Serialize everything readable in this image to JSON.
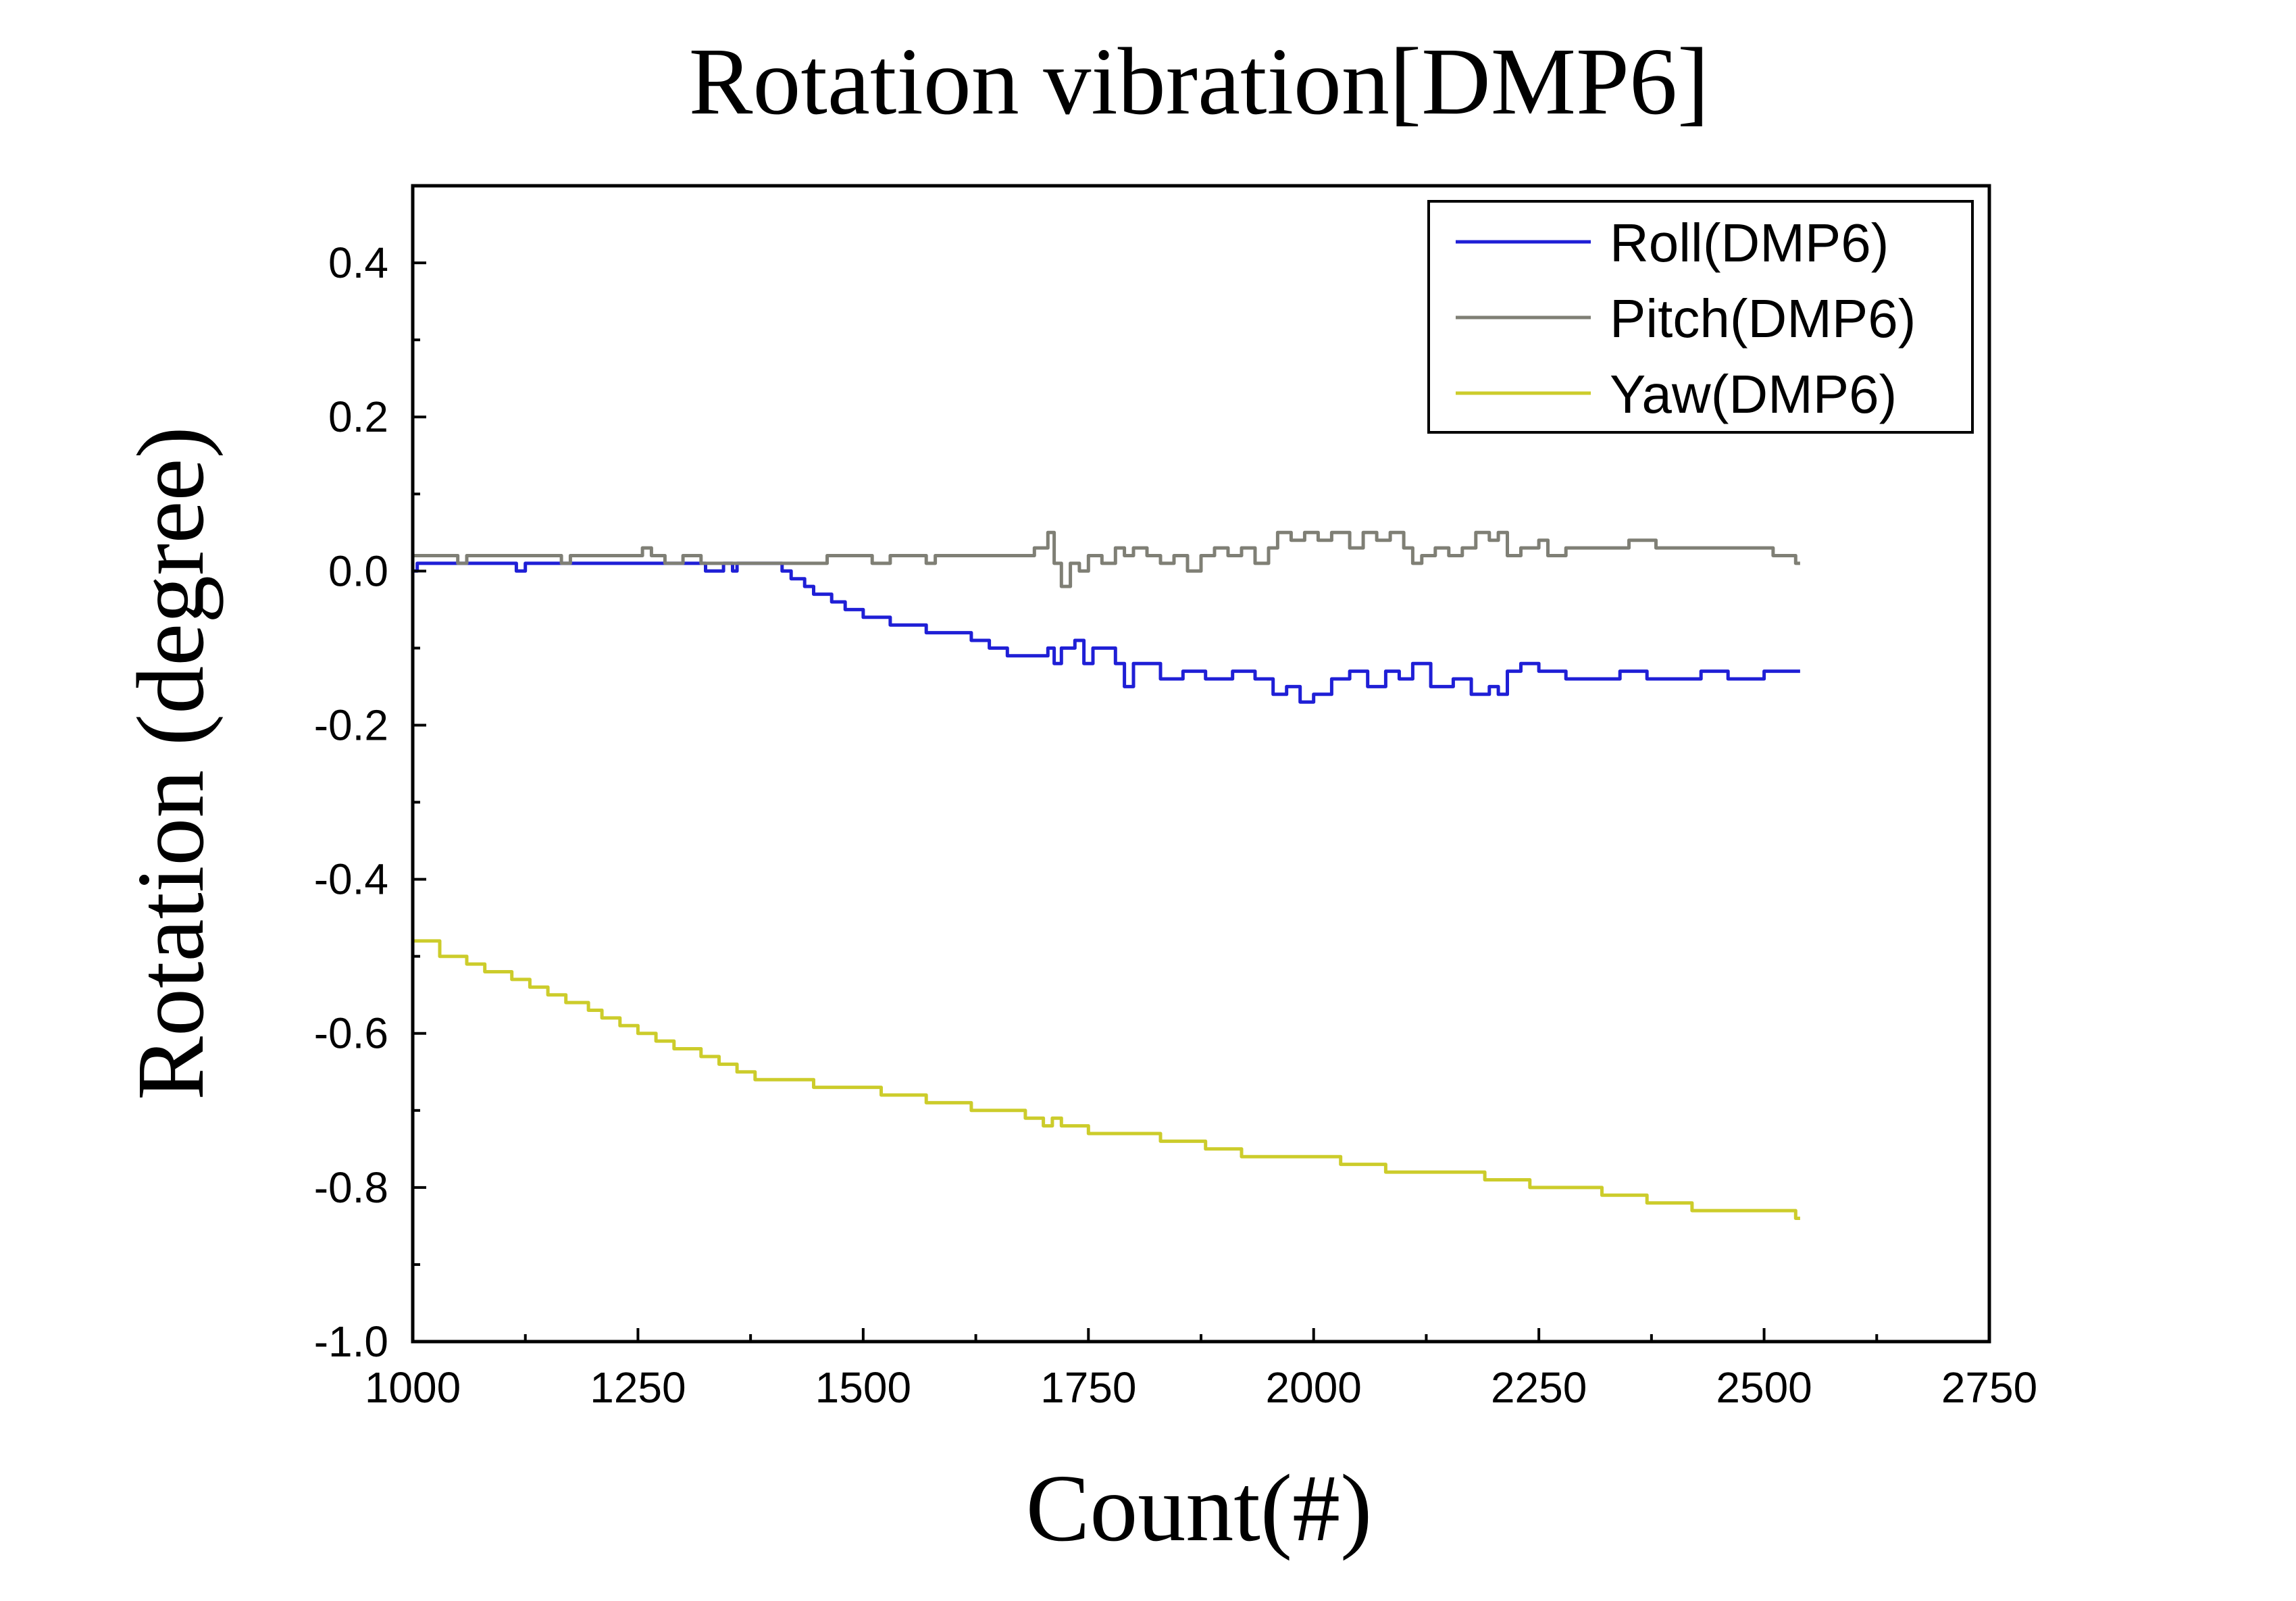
{
  "chart_data": {
    "type": "line",
    "title": "Rotation vibration[DMP6]",
    "xlabel": "Count(#)",
    "ylabel": "Rotation (degree)",
    "xlim": [
      1000,
      2750
    ],
    "ylim": [
      -1.0,
      0.5
    ],
    "x_ticks": [
      1000,
      1250,
      1500,
      1750,
      2000,
      2250,
      2500,
      2750
    ],
    "x_tick_labels": [
      "1000",
      "1250",
      "1500",
      "1750",
      "2000",
      "2250",
      "2500",
      "2750"
    ],
    "y_ticks": [
      0.4,
      0.2,
      0.0,
      -0.2,
      -0.4,
      -0.6,
      -0.8,
      -1.0
    ],
    "y_tick_labels": [
      "0.4",
      "0.2",
      "0.0",
      "-0.2",
      "-0.4",
      "-0.6",
      "-0.8",
      "-1.0"
    ],
    "grid": false,
    "legend_position": "top-right",
    "series": [
      {
        "name": "Roll(DMP6)",
        "color": "#1f1fd6",
        "points": [
          [
            1000,
            0.0
          ],
          [
            1005,
            0.01
          ],
          [
            1110,
            0.01
          ],
          [
            1115,
            0.0
          ],
          [
            1125,
            0.01
          ],
          [
            1320,
            0.01
          ],
          [
            1325,
            0.0
          ],
          [
            1345,
            0.01
          ],
          [
            1355,
            0.0
          ],
          [
            1360,
            0.01
          ],
          [
            1400,
            0.01
          ],
          [
            1410,
            0.0
          ],
          [
            1420,
            -0.01
          ],
          [
            1435,
            -0.02
          ],
          [
            1445,
            -0.03
          ],
          [
            1465,
            -0.04
          ],
          [
            1480,
            -0.05
          ],
          [
            1500,
            -0.06
          ],
          [
            1530,
            -0.07
          ],
          [
            1570,
            -0.08
          ],
          [
            1620,
            -0.09
          ],
          [
            1640,
            -0.1
          ],
          [
            1660,
            -0.11
          ],
          [
            1700,
            -0.11
          ],
          [
            1705,
            -0.1
          ],
          [
            1712,
            -0.12
          ],
          [
            1720,
            -0.1
          ],
          [
            1735,
            -0.09
          ],
          [
            1745,
            -0.12
          ],
          [
            1755,
            -0.1
          ],
          [
            1770,
            -0.1
          ],
          [
            1780,
            -0.12
          ],
          [
            1790,
            -0.15
          ],
          [
            1800,
            -0.12
          ],
          [
            1815,
            -0.12
          ],
          [
            1830,
            -0.14
          ],
          [
            1855,
            -0.13
          ],
          [
            1880,
            -0.14
          ],
          [
            1910,
            -0.13
          ],
          [
            1935,
            -0.14
          ],
          [
            1955,
            -0.16
          ],
          [
            1970,
            -0.15
          ],
          [
            1985,
            -0.17
          ],
          [
            2000,
            -0.16
          ],
          [
            2020,
            -0.14
          ],
          [
            2040,
            -0.13
          ],
          [
            2060,
            -0.15
          ],
          [
            2080,
            -0.13
          ],
          [
            2095,
            -0.14
          ],
          [
            2110,
            -0.12
          ],
          [
            2130,
            -0.15
          ],
          [
            2155,
            -0.14
          ],
          [
            2175,
            -0.16
          ],
          [
            2195,
            -0.15
          ],
          [
            2205,
            -0.16
          ],
          [
            2215,
            -0.13
          ],
          [
            2230,
            -0.12
          ],
          [
            2250,
            -0.13
          ],
          [
            2280,
            -0.14
          ],
          [
            2310,
            -0.14
          ],
          [
            2340,
            -0.13
          ],
          [
            2370,
            -0.14
          ],
          [
            2400,
            -0.14
          ],
          [
            2430,
            -0.13
          ],
          [
            2460,
            -0.14
          ],
          [
            2500,
            -0.13
          ],
          [
            2540,
            -0.13
          ]
        ]
      },
      {
        "name": "Pitch(DMP6)",
        "color": "#7f7f75",
        "points": [
          [
            1000,
            0.02
          ],
          [
            1040,
            0.02
          ],
          [
            1050,
            0.01
          ],
          [
            1060,
            0.02
          ],
          [
            1160,
            0.02
          ],
          [
            1165,
            0.01
          ],
          [
            1175,
            0.02
          ],
          [
            1250,
            0.02
          ],
          [
            1255,
            0.03
          ],
          [
            1265,
            0.02
          ],
          [
            1280,
            0.01
          ],
          [
            1300,
            0.02
          ],
          [
            1320,
            0.01
          ],
          [
            1400,
            0.01
          ],
          [
            1450,
            0.01
          ],
          [
            1460,
            0.02
          ],
          [
            1500,
            0.02
          ],
          [
            1510,
            0.01
          ],
          [
            1530,
            0.02
          ],
          [
            1560,
            0.02
          ],
          [
            1570,
            0.01
          ],
          [
            1580,
            0.02
          ],
          [
            1680,
            0.02
          ],
          [
            1690,
            0.03
          ],
          [
            1700,
            0.03
          ],
          [
            1705,
            0.05
          ],
          [
            1712,
            0.01
          ],
          [
            1720,
            -0.02
          ],
          [
            1730,
            0.01
          ],
          [
            1740,
            0.0
          ],
          [
            1750,
            0.02
          ],
          [
            1765,
            0.01
          ],
          [
            1780,
            0.03
          ],
          [
            1790,
            0.02
          ],
          [
            1800,
            0.03
          ],
          [
            1815,
            0.02
          ],
          [
            1830,
            0.01
          ],
          [
            1845,
            0.02
          ],
          [
            1860,
            0.0
          ],
          [
            1875,
            0.02
          ],
          [
            1890,
            0.03
          ],
          [
            1905,
            0.02
          ],
          [
            1920,
            0.03
          ],
          [
            1935,
            0.01
          ],
          [
            1950,
            0.03
          ],
          [
            1960,
            0.05
          ],
          [
            1975,
            0.04
          ],
          [
            1990,
            0.05
          ],
          [
            2005,
            0.04
          ],
          [
            2020,
            0.05
          ],
          [
            2040,
            0.03
          ],
          [
            2055,
            0.05
          ],
          [
            2070,
            0.04
          ],
          [
            2085,
            0.05
          ],
          [
            2100,
            0.03
          ],
          [
            2110,
            0.01
          ],
          [
            2120,
            0.02
          ],
          [
            2135,
            0.03
          ],
          [
            2150,
            0.02
          ],
          [
            2165,
            0.03
          ],
          [
            2180,
            0.05
          ],
          [
            2195,
            0.04
          ],
          [
            2205,
            0.05
          ],
          [
            2215,
            0.02
          ],
          [
            2230,
            0.03
          ],
          [
            2250,
            0.04
          ],
          [
            2260,
            0.02
          ],
          [
            2280,
            0.03
          ],
          [
            2340,
            0.03
          ],
          [
            2350,
            0.04
          ],
          [
            2380,
            0.03
          ],
          [
            2500,
            0.03
          ],
          [
            2510,
            0.02
          ],
          [
            2525,
            0.02
          ],
          [
            2535,
            0.01
          ],
          [
            2540,
            0.01
          ]
        ]
      },
      {
        "name": "Yaw(DMP6)",
        "color": "#cccc2b",
        "points": [
          [
            1000,
            -0.48
          ],
          [
            1020,
            -0.48
          ],
          [
            1030,
            -0.5
          ],
          [
            1060,
            -0.51
          ],
          [
            1080,
            -0.52
          ],
          [
            1110,
            -0.53
          ],
          [
            1130,
            -0.54
          ],
          [
            1150,
            -0.55
          ],
          [
            1170,
            -0.56
          ],
          [
            1195,
            -0.57
          ],
          [
            1210,
            -0.58
          ],
          [
            1230,
            -0.59
          ],
          [
            1250,
            -0.6
          ],
          [
            1270,
            -0.61
          ],
          [
            1290,
            -0.62
          ],
          [
            1320,
            -0.63
          ],
          [
            1340,
            -0.64
          ],
          [
            1360,
            -0.65
          ],
          [
            1380,
            -0.66
          ],
          [
            1440,
            -0.66
          ],
          [
            1445,
            -0.67
          ],
          [
            1510,
            -0.67
          ],
          [
            1520,
            -0.68
          ],
          [
            1570,
            -0.69
          ],
          [
            1620,
            -0.7
          ],
          [
            1680,
            -0.71
          ],
          [
            1700,
            -0.72
          ],
          [
            1710,
            -0.71
          ],
          [
            1720,
            -0.72
          ],
          [
            1735,
            -0.72
          ],
          [
            1750,
            -0.73
          ],
          [
            1800,
            -0.73
          ],
          [
            1830,
            -0.74
          ],
          [
            1860,
            -0.74
          ],
          [
            1880,
            -0.75
          ],
          [
            1910,
            -0.75
          ],
          [
            1920,
            -0.76
          ],
          [
            1960,
            -0.76
          ],
          [
            2000,
            -0.76
          ],
          [
            2030,
            -0.77
          ],
          [
            2060,
            -0.77
          ],
          [
            2080,
            -0.78
          ],
          [
            2150,
            -0.78
          ],
          [
            2190,
            -0.79
          ],
          [
            2220,
            -0.79
          ],
          [
            2240,
            -0.8
          ],
          [
            2300,
            -0.8
          ],
          [
            2320,
            -0.81
          ],
          [
            2370,
            -0.82
          ],
          [
            2420,
            -0.83
          ],
          [
            2500,
            -0.83
          ],
          [
            2530,
            -0.83
          ],
          [
            2535,
            -0.84
          ],
          [
            2540,
            -0.84
          ]
        ]
      }
    ]
  }
}
